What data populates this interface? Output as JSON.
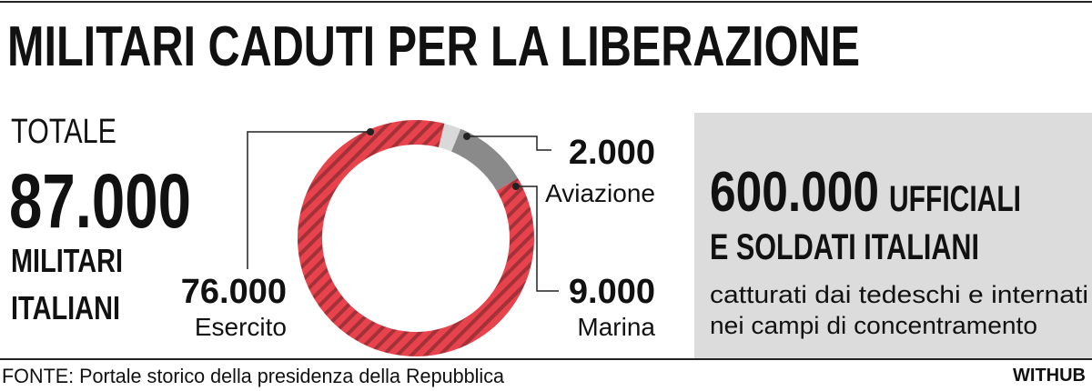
{
  "chart_data": {
    "type": "donut",
    "title": "MILITARI CADUTI PER LA LIBERAZIONE",
    "categories": [
      "Esercito",
      "Aviazione",
      "Marina"
    ],
    "values": [
      76000,
      2000,
      9000
    ],
    "value_labels": [
      "76.000",
      "2.000",
      "9.000"
    ],
    "colors": [
      "#e8434c",
      "#d9d9d9",
      "#8a8a8a"
    ],
    "total": {
      "heading": "TOTALE",
      "number": "87.000",
      "line1": "MILITARI",
      "line2": "ITALIANI"
    },
    "panel": {
      "number": "600.000",
      "line1": "UFFICIALI",
      "line2": "E SOLDATI ITALIANI",
      "line3": "catturati dai tedeschi e internati",
      "line4": "nei campi di concentramento"
    },
    "source": "FONTE: Portale storico della presidenza della Repubblica",
    "brand": "WITHUB"
  }
}
